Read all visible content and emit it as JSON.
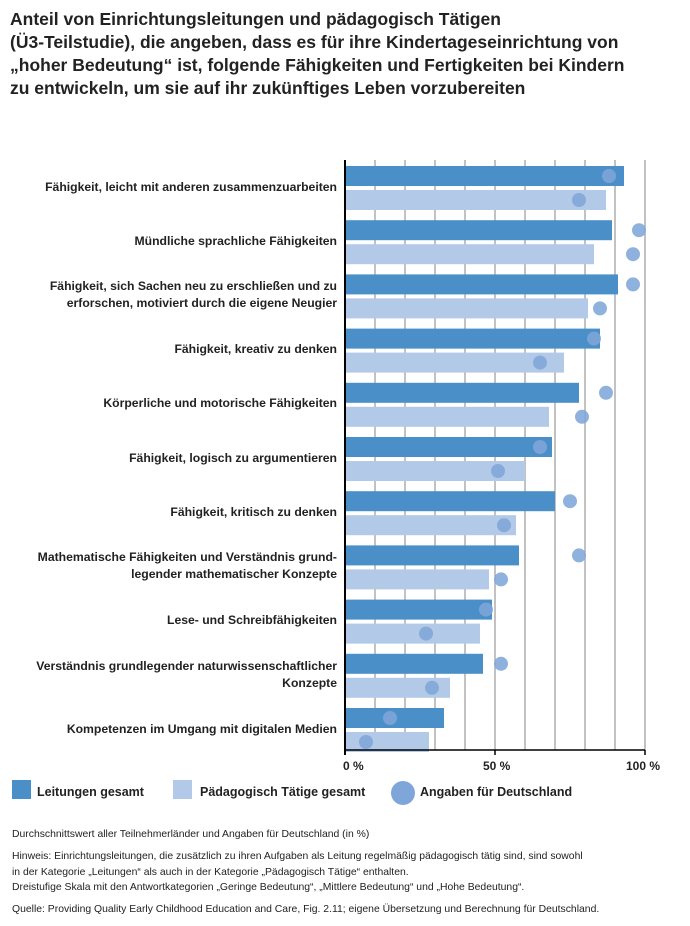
{
  "title_lines": [
    "Anteil von Einrichtungsleitungen und pädagogisch Tätigen",
    "(Ü3-Teilstudie), die angeben, dass es für ihre Kindertageseinrichtung von",
    "„hoher Bedeutung“ ist, folgende Fähigkeiten und Fertigkeiten bei Kindern",
    "zu entwickeln, um sie auf ihr zukünftiges Leben vorzubereiten"
  ],
  "chart_data": {
    "type": "bar",
    "orientation": "horizontal",
    "categories": [
      [
        "Fähigkeit, leicht mit anderen zusammenzuarbeiten"
      ],
      [
        "Mündliche sprachliche Fähigkeiten"
      ],
      [
        "Fähigkeit, sich Sachen neu zu erschließen und zu",
        "erforschen, motiviert durch die eigene Neugier"
      ],
      [
        "Fähigkeit, kreativ zu denken"
      ],
      [
        "Körperliche und motorische Fähigkeiten"
      ],
      [
        "Fähigkeit, logisch zu argumentieren"
      ],
      [
        "Fähigkeit, kritisch zu denken"
      ],
      [
        "Mathematische Fähigkeiten und Verständnis grund-",
        "legender mathematischer Konzepte"
      ],
      [
        "Lese- und Schreibfähigkeiten"
      ],
      [
        "Verständnis grundlegender naturwissenschaftlicher",
        "Konzepte"
      ],
      [
        "Kompetenzen im Umgang mit digitalen Medien"
      ]
    ],
    "series": [
      {
        "name": "Leitungen gesamt",
        "color": "#4a8fc8",
        "values": [
          93,
          89,
          91,
          85,
          78,
          69,
          70,
          58,
          49,
          46,
          33
        ]
      },
      {
        "name": "Pädagogisch Tätige gesamt",
        "color": "#b2c9e7",
        "values": [
          87,
          83,
          81,
          73,
          68,
          60,
          57,
          48,
          45,
          35,
          28
        ]
      },
      {
        "name": "Angaben für Deutschland – Leitungen",
        "color": "#7fa6d8",
        "values": [
          88,
          98,
          96,
          83,
          87,
          65,
          75,
          78,
          47,
          52,
          15
        ]
      },
      {
        "name": "Angaben für Deutschland – Pädagogisch Tätige",
        "color": "#7fa6d8",
        "values": [
          78,
          96,
          85,
          65,
          79,
          51,
          53,
          52,
          27,
          29,
          7
        ]
      }
    ],
    "xlim": [
      0,
      100
    ],
    "xticks": [
      0,
      50,
      100
    ],
    "xtick_labels": [
      "0 %",
      "50 %",
      "100 %"
    ],
    "grid_step": 10,
    "legend": {
      "position": "bottom-left",
      "items": [
        "Leitungen gesamt",
        "Pädagogisch Tätige gesamt",
        "Angaben für Deutschland"
      ]
    }
  },
  "notes": {
    "subtitle": "Durchschnittswert aller Teilnehmerländer und Angaben für Deutschland (in %)",
    "hint_lines": [
      "Hinweis: Einrichtungsleitungen, die zusätzlich zu ihren Aufgaben als Leitung regelmäßig pädagogisch tätig sind, sind sowohl",
      "in der Kategorie „Leitungen“ als auch in der Kategorie „Pädagogisch Tätige“ enthalten.",
      "Dreistufige Skala mit den Antwortkategorien „Geringe Bedeutung“, „Mittlere Bedeutung“ und „Hohe Bedeutung“."
    ],
    "source": "Quelle: Providing Quality Early Childhood Education and Care, Fig. 2.11; eigene Übersetzung und Berechnung für Deutschland."
  }
}
